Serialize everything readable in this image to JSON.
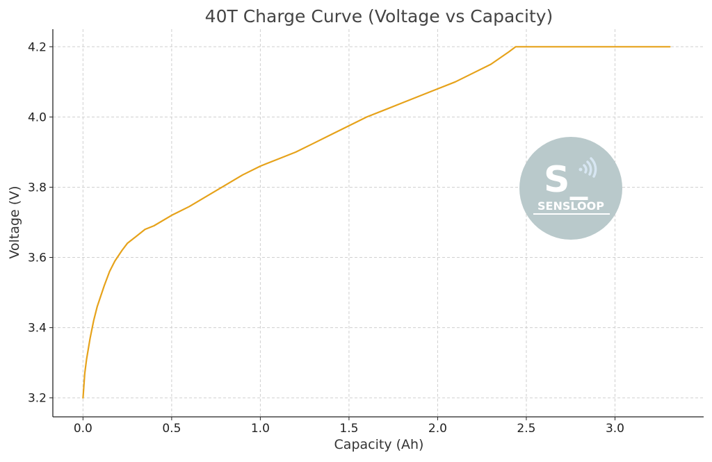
{
  "chart_data": {
    "type": "line",
    "title": "40T Charge Curve (Voltage vs Capacity)",
    "xlabel": "Capacity (Ah)",
    "ylabel": "Voltage (V)",
    "xlim": [
      -0.17,
      3.5
    ],
    "ylim": [
      3.146,
      4.25
    ],
    "x_ticks": [
      0.0,
      0.5,
      1.0,
      1.5,
      2.0,
      2.5,
      3.0
    ],
    "x_tick_labels": [
      "0.0",
      "0.5",
      "1.0",
      "1.5",
      "2.0",
      "2.5",
      "3.0"
    ],
    "y_ticks": [
      3.2,
      3.4,
      3.6,
      3.8,
      4.0,
      4.2
    ],
    "y_tick_labels": [
      "3.2",
      "3.4",
      "3.6",
      "3.8",
      "4.0",
      "4.2"
    ],
    "grid": true,
    "series": [
      {
        "color": "#e6a21a",
        "x": [
          0.0,
          0.01,
          0.02,
          0.04,
          0.06,
          0.08,
          0.1,
          0.12,
          0.15,
          0.18,
          0.22,
          0.25,
          0.3,
          0.35,
          0.4,
          0.5,
          0.6,
          0.7,
          0.8,
          0.9,
          1.0,
          1.1,
          1.2,
          1.3,
          1.4,
          1.5,
          1.6,
          1.7,
          1.8,
          1.9,
          2.0,
          2.1,
          2.2,
          2.3,
          2.4,
          2.44,
          2.5,
          2.7,
          3.0,
          3.31
        ],
        "values": [
          3.2,
          3.27,
          3.31,
          3.37,
          3.42,
          3.46,
          3.49,
          3.52,
          3.56,
          3.59,
          3.62,
          3.64,
          3.66,
          3.68,
          3.69,
          3.72,
          3.745,
          3.775,
          3.805,
          3.835,
          3.86,
          3.88,
          3.9,
          3.925,
          3.95,
          3.975,
          4.0,
          4.02,
          4.04,
          4.06,
          4.08,
          4.1,
          4.125,
          4.15,
          4.185,
          4.2,
          4.2,
          4.2,
          4.2,
          4.2
        ]
      }
    ]
  },
  "watermark": {
    "logo_text": "S_",
    "brand_text": "SENSLOOP",
    "circle_color": "#b9c9cb",
    "icon": "wifi-signal-icon"
  }
}
